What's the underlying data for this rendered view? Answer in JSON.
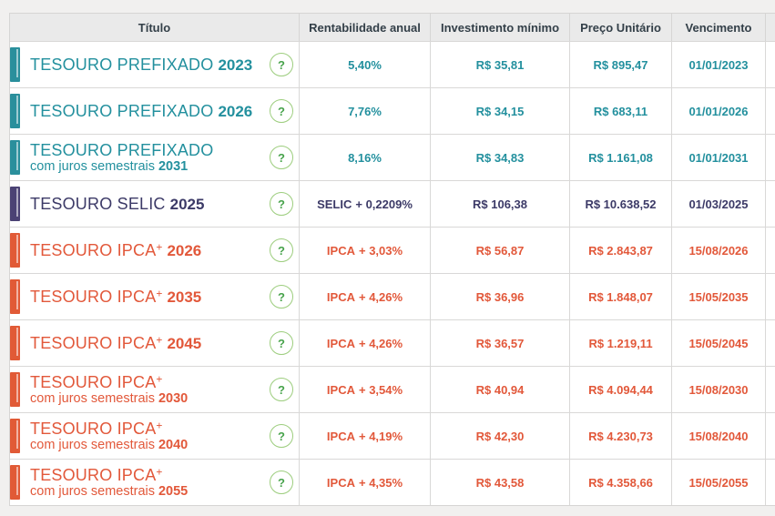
{
  "table": {
    "columns": [
      {
        "label": "Título"
      },
      {
        "label": "Rentabilidade anual"
      },
      {
        "label": "Investimento mínimo"
      },
      {
        "label": "Preço Unitário"
      },
      {
        "label": "Vencimento"
      }
    ],
    "help_icon_glyph": "?",
    "rows": [
      {
        "category": "prefixado",
        "title": "TESOURO PREFIXADO",
        "sup": "",
        "subtitle": "",
        "year": "2023",
        "rate_label": "",
        "rate_value": "5,40%",
        "min_investment": "R$ 35,81",
        "unit_price": "R$ 895,47",
        "maturity": "01/01/2023"
      },
      {
        "category": "prefixado",
        "title": "TESOURO PREFIXADO",
        "sup": "",
        "subtitle": "",
        "year": "2026",
        "rate_label": "",
        "rate_value": "7,76%",
        "min_investment": "R$ 34,15",
        "unit_price": "R$ 683,11",
        "maturity": "01/01/2026"
      },
      {
        "category": "prefixado",
        "title": "TESOURO PREFIXADO",
        "sup": "",
        "subtitle": "com juros semestrais",
        "year": "2031",
        "rate_label": "",
        "rate_value": "8,16%",
        "min_investment": "R$ 34,83",
        "unit_price": "R$ 1.161,08",
        "maturity": "01/01/2031"
      },
      {
        "category": "selic",
        "title": "TESOURO SELIC",
        "sup": "",
        "subtitle": "",
        "year": "2025",
        "rate_label": "SELIC",
        "rate_value": "+ 0,2209%",
        "min_investment": "R$ 106,38",
        "unit_price": "R$ 10.638,52",
        "maturity": "01/03/2025"
      },
      {
        "category": "ipca",
        "title": "TESOURO IPCA",
        "sup": "+",
        "subtitle": "",
        "year": "2026",
        "rate_label": "IPCA",
        "rate_value": "+ 3,03%",
        "min_investment": "R$ 56,87",
        "unit_price": "R$ 2.843,87",
        "maturity": "15/08/2026"
      },
      {
        "category": "ipca",
        "title": "TESOURO IPCA",
        "sup": "+",
        "subtitle": "",
        "year": "2035",
        "rate_label": "IPCA",
        "rate_value": "+ 4,26%",
        "min_investment": "R$ 36,96",
        "unit_price": "R$ 1.848,07",
        "maturity": "15/05/2035"
      },
      {
        "category": "ipca",
        "title": "TESOURO IPCA",
        "sup": "+",
        "subtitle": "",
        "year": "2045",
        "rate_label": "IPCA",
        "rate_value": "+ 4,26%",
        "min_investment": "R$ 36,57",
        "unit_price": "R$ 1.219,11",
        "maturity": "15/05/2045"
      },
      {
        "category": "ipca",
        "title": "TESOURO IPCA",
        "sup": "+",
        "subtitle": "com juros semestrais",
        "year": "2030",
        "rate_label": "IPCA",
        "rate_value": "+ 3,54%",
        "min_investment": "R$ 40,94",
        "unit_price": "R$ 4.094,44",
        "maturity": "15/08/2030"
      },
      {
        "category": "ipca",
        "title": "TESOURO IPCA",
        "sup": "+",
        "subtitle": "com juros semestrais",
        "year": "2040",
        "rate_label": "IPCA",
        "rate_value": "+ 4,19%",
        "min_investment": "R$ 42,30",
        "unit_price": "R$ 4.230,73",
        "maturity": "15/08/2040"
      },
      {
        "category": "ipca",
        "title": "TESOURO IPCA",
        "sup": "+",
        "subtitle": "com juros semestrais",
        "year": "2055",
        "rate_label": "IPCA",
        "rate_value": "+ 4,35%",
        "min_investment": "R$ 43,58",
        "unit_price": "R$ 4.358,66",
        "maturity": "15/05/2055"
      }
    ],
    "colors": {
      "prefixado": {
        "text": "#23909e",
        "bar": "#2a8f9c"
      },
      "selic": {
        "text": "#3c3a67",
        "bar": "#4b4274"
      },
      "ipca": {
        "text": "#e2583a",
        "bar": "#e15a36"
      },
      "help_glyph": "#48a34c",
      "help_border": "#9ccd7d",
      "header_text": "#333f48"
    }
  }
}
